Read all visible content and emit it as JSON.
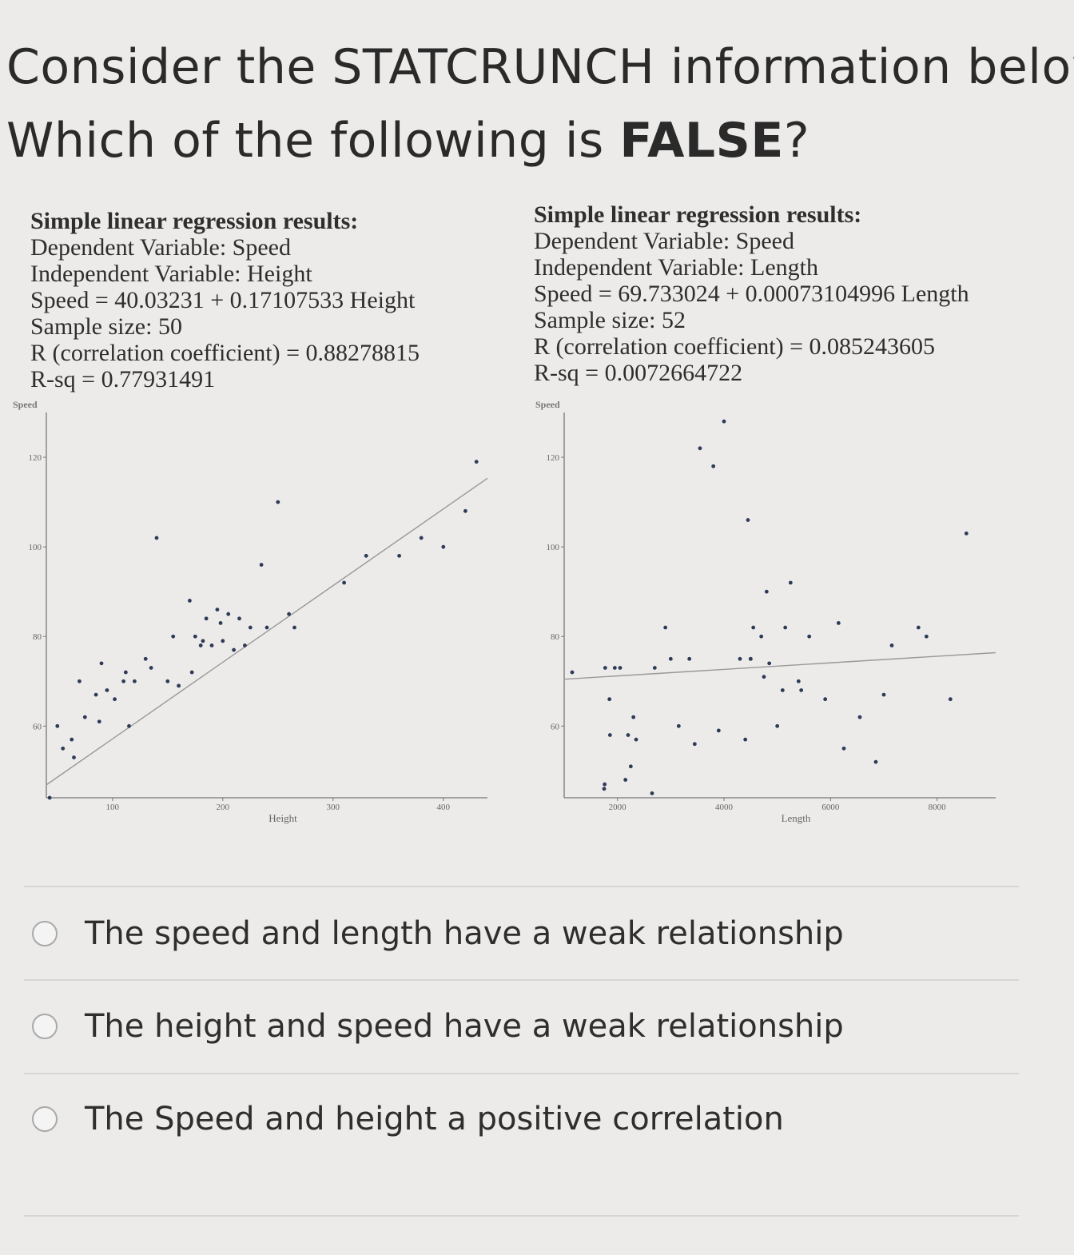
{
  "question": {
    "line1": "Consider the STATCRUNCH information below.",
    "line2_prefix": "Which  of the following is ",
    "line2_bold": "FALSE",
    "line2_suffix": "?"
  },
  "left_results": {
    "heading": "Simple linear regression results:",
    "dependent": "Dependent Variable: Speed",
    "independent": "Independent Variable: Height",
    "equation": "Speed = 40.03231 + 0.17107533 Height",
    "sample_size": "Sample size: 50",
    "r": "R (correlation coefficient) = 0.88278815",
    "rsq": "R-sq = 0.77931491"
  },
  "right_results": {
    "heading": "Simple linear regression results:",
    "dependent": "Dependent Variable: Speed",
    "independent": "Independent Variable: Length",
    "equation": "Speed = 69.733024 + 0.00073104996 Length",
    "sample_size": "Sample size: 52",
    "r": "R (correlation coefficient) = 0.085243605",
    "rsq": "R-sq = 0.0072664722"
  },
  "chart_data": [
    {
      "type": "scatter",
      "title": "",
      "xlabel": "Height",
      "ylabel": "Speed",
      "xlim": [
        40,
        440
      ],
      "ylim": [
        44,
        130
      ],
      "xticks": [
        100,
        200,
        300,
        400
      ],
      "yticks": [
        60,
        80,
        100,
        120
      ],
      "regression": {
        "intercept": 40.03231,
        "slope": 0.17107533
      },
      "x": [
        43,
        55,
        63,
        65,
        75,
        70,
        88,
        85,
        95,
        102,
        110,
        112,
        115,
        130,
        135,
        140,
        150,
        155,
        160,
        170,
        172,
        175,
        180,
        182,
        185,
        190,
        195,
        198,
        200,
        205,
        210,
        215,
        220,
        225,
        235,
        240,
        260,
        265,
        310,
        330,
        360,
        380,
        400,
        420,
        430,
        445,
        50,
        90,
        120,
        250
      ],
      "y": [
        44,
        55,
        57,
        53,
        62,
        70,
        61,
        67,
        68,
        66,
        70,
        72,
        60,
        75,
        73,
        102,
        70,
        80,
        69,
        88,
        72,
        80,
        78,
        79,
        84,
        78,
        86,
        83,
        79,
        85,
        77,
        84,
        78,
        82,
        96,
        82,
        85,
        82,
        92,
        98,
        98,
        102,
        100,
        108,
        119,
        126,
        60,
        74,
        70,
        110
      ]
    },
    {
      "type": "scatter",
      "title": "",
      "xlabel": "Length",
      "ylabel": "Speed",
      "xlim": [
        1000,
        9100
      ],
      "ylim": [
        44,
        130
      ],
      "xticks": [
        2000,
        4000,
        6000,
        8000
      ],
      "yticks": [
        60,
        80,
        100,
        120
      ],
      "regression": {
        "intercept": 69.733024,
        "slope": 0.00073104996
      },
      "x": [
        1150,
        1750,
        1760,
        1770,
        1850,
        1860,
        1950,
        2050,
        2150,
        2200,
        2250,
        2300,
        2350,
        2650,
        2700,
        2900,
        3000,
        3150,
        3350,
        3450,
        3550,
        3800,
        3900,
        4000,
        4300,
        4400,
        4450,
        4500,
        4500,
        4550,
        4700,
        4750,
        4800,
        4850,
        5000,
        5100,
        5150,
        5250,
        5400,
        5450,
        5600,
        5900,
        6150,
        6250,
        6550,
        6850,
        7000,
        7150,
        7650,
        7800,
        8250,
        8550
      ],
      "y": [
        72,
        46,
        47,
        73,
        66,
        58,
        73,
        73,
        48,
        58,
        51,
        62,
        57,
        45,
        73,
        82,
        75,
        60,
        75,
        56,
        122,
        118,
        59,
        128,
        75,
        57,
        106,
        75,
        75,
        82,
        80,
        71,
        90,
        74,
        60,
        68,
        82,
        92,
        70,
        68,
        80,
        66,
        83,
        55,
        62,
        52,
        67,
        78,
        82,
        80,
        66,
        103
      ]
    }
  ],
  "options": [
    {
      "label": "The speed and length have a weak relationship"
    },
    {
      "label": "The height and speed have a weak relationship"
    },
    {
      "label": "The Speed and height a positive correlation"
    }
  ]
}
